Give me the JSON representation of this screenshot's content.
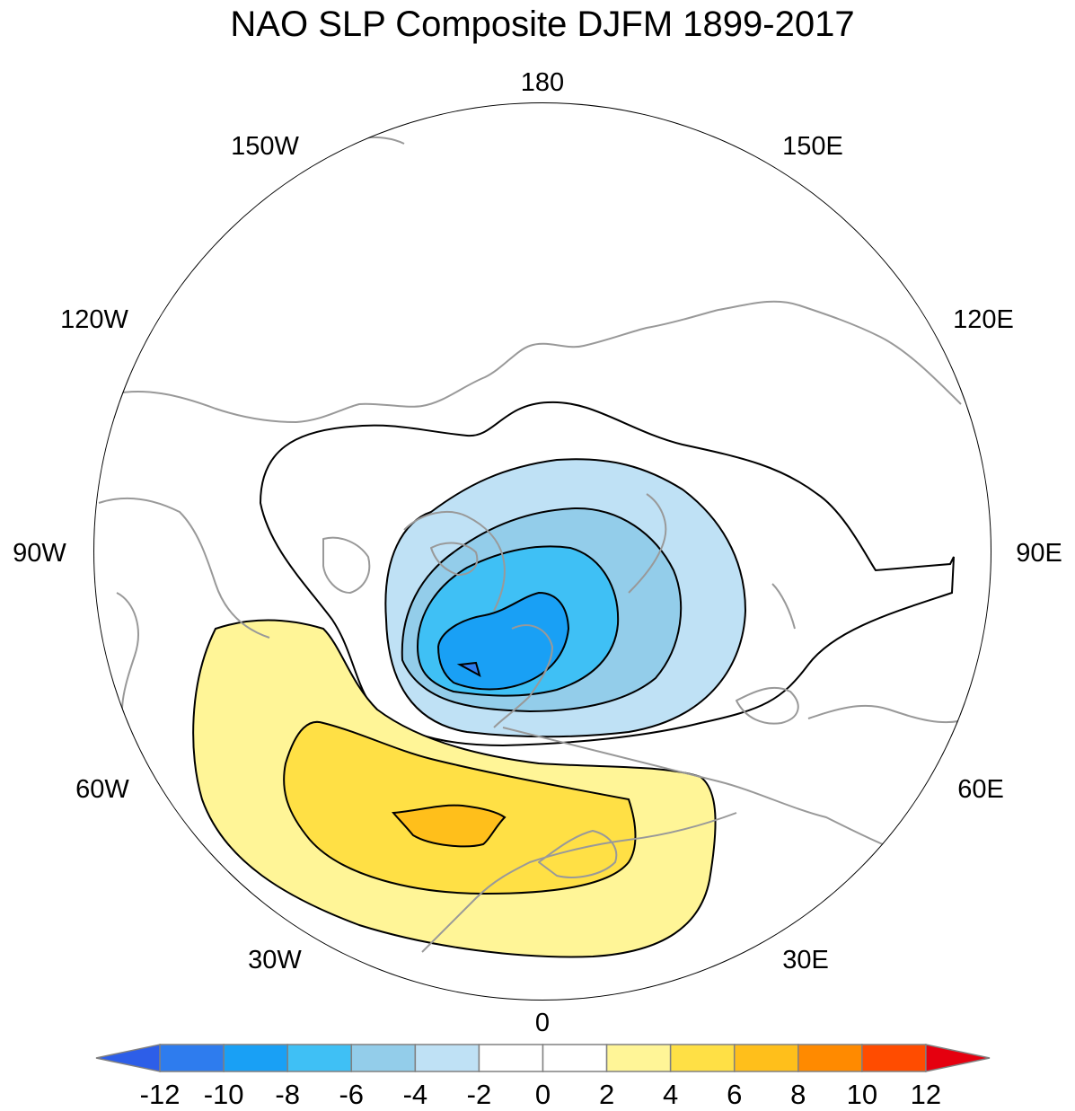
{
  "title": "NAO SLP Composite DJFM 1899-2017",
  "longitude_labels": {
    "top": "180",
    "bottom": "0",
    "left": "90W",
    "right": "90E",
    "upper_left_1": "150W",
    "upper_left_2": "120W",
    "upper_right_1": "150E",
    "upper_right_2": "120E",
    "lower_left_1": "60W",
    "lower_left_2": "30W",
    "lower_right_1": "60E",
    "lower_right_2": "30E"
  },
  "colorbar": {
    "colors": [
      "#2d5ee8",
      "#2e7cee",
      "#19a0f5",
      "#3fc0f5",
      "#93cdea",
      "#bfe1f5",
      "#ffffff",
      "#ffffff",
      "#fff597",
      "#ffe045",
      "#ffbf1b",
      "#ff8a00",
      "#ff4c00",
      "#e5000f"
    ],
    "labels": [
      "-12",
      "-10",
      "-8",
      "-6",
      "-4",
      "-2",
      "0",
      "2",
      "4",
      "6",
      "8",
      "10",
      "12"
    ]
  },
  "map": {
    "projection": "north polar stereographic",
    "field": "sea level pressure composite anomaly",
    "negative_center_region": "Iceland / Arctic",
    "positive_center_region": "Azores / subtropical Atlantic"
  }
}
